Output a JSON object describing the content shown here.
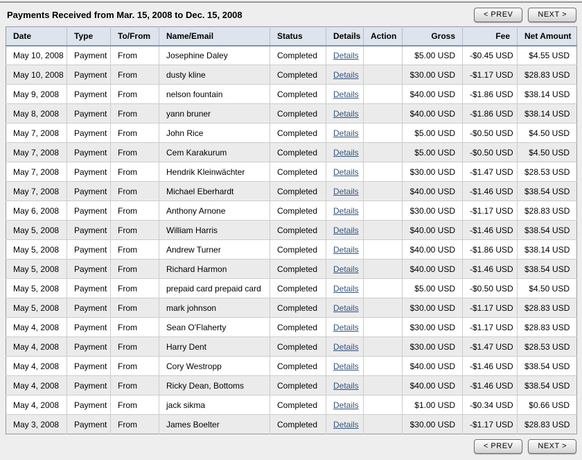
{
  "page": {
    "title": "Payments Received from Mar. 15, 2008 to Dec. 15, 2008",
    "prev_label": "< PREV",
    "next_label": "NEXT >"
  },
  "table": {
    "columns": [
      "Date",
      "Type",
      "To/From",
      "Name/Email",
      "Status",
      "Details",
      "Action",
      "Gross",
      "Fee",
      "Net Amount"
    ],
    "details_label": "Details",
    "rows": [
      {
        "date": "May 10, 2008",
        "type": "Payment",
        "to_from": "From",
        "name": "Josephine Daley",
        "status": "Completed",
        "gross": "$5.00 USD",
        "fee": "-$0.45 USD",
        "net": "$4.55 USD"
      },
      {
        "date": "May 10, 2008",
        "type": "Payment",
        "to_from": "From",
        "name": "dusty kline",
        "status": "Completed",
        "gross": "$30.00 USD",
        "fee": "-$1.17 USD",
        "net": "$28.83 USD"
      },
      {
        "date": "May 9, 2008",
        "type": "Payment",
        "to_from": "From",
        "name": "nelson fountain",
        "status": "Completed",
        "gross": "$40.00 USD",
        "fee": "-$1.86 USD",
        "net": "$38.14 USD"
      },
      {
        "date": "May 8, 2008",
        "type": "Payment",
        "to_from": "From",
        "name": "yann bruner",
        "status": "Completed",
        "gross": "$40.00 USD",
        "fee": "-$1.86 USD",
        "net": "$38.14 USD"
      },
      {
        "date": "May 7, 2008",
        "type": "Payment",
        "to_from": "From",
        "name": "John Rice",
        "status": "Completed",
        "gross": "$5.00 USD",
        "fee": "-$0.50 USD",
        "net": "$4.50 USD"
      },
      {
        "date": "May 7, 2008",
        "type": "Payment",
        "to_from": "From",
        "name": "Cem Karakurum",
        "status": "Completed",
        "gross": "$5.00 USD",
        "fee": "-$0.50 USD",
        "net": "$4.50 USD"
      },
      {
        "date": "May 7, 2008",
        "type": "Payment",
        "to_from": "From",
        "name": "Hendrik Kleinwächter",
        "status": "Completed",
        "gross": "$30.00 USD",
        "fee": "-$1.47 USD",
        "net": "$28.53 USD"
      },
      {
        "date": "May 7, 2008",
        "type": "Payment",
        "to_from": "From",
        "name": "Michael Eberhardt",
        "status": "Completed",
        "gross": "$40.00 USD",
        "fee": "-$1.46 USD",
        "net": "$38.54 USD"
      },
      {
        "date": "May 6, 2008",
        "type": "Payment",
        "to_from": "From",
        "name": "Anthony Arnone",
        "status": "Completed",
        "gross": "$30.00 USD",
        "fee": "-$1.17 USD",
        "net": "$28.83 USD"
      },
      {
        "date": "May 5, 2008",
        "type": "Payment",
        "to_from": "From",
        "name": "William Harris",
        "status": "Completed",
        "gross": "$40.00 USD",
        "fee": "-$1.46 USD",
        "net": "$38.54 USD"
      },
      {
        "date": "May 5, 2008",
        "type": "Payment",
        "to_from": "From",
        "name": "Andrew Turner",
        "status": "Completed",
        "gross": "$40.00 USD",
        "fee": "-$1.86 USD",
        "net": "$38.14 USD"
      },
      {
        "date": "May 5, 2008",
        "type": "Payment",
        "to_from": "From",
        "name": "Richard Harmon",
        "status": "Completed",
        "gross": "$40.00 USD",
        "fee": "-$1.46 USD",
        "net": "$38.54 USD"
      },
      {
        "date": "May 5, 2008",
        "type": "Payment",
        "to_from": "From",
        "name": "prepaid card prepaid card",
        "status": "Completed",
        "gross": "$5.00 USD",
        "fee": "-$0.50 USD",
        "net": "$4.50 USD"
      },
      {
        "date": "May 5, 2008",
        "type": "Payment",
        "to_from": "From",
        "name": "mark johnson",
        "status": "Completed",
        "gross": "$30.00 USD",
        "fee": "-$1.17 USD",
        "net": "$28.83 USD"
      },
      {
        "date": "May 4, 2008",
        "type": "Payment",
        "to_from": "From",
        "name": "Sean O'Flaherty",
        "status": "Completed",
        "gross": "$30.00 USD",
        "fee": "-$1.17 USD",
        "net": "$28.83 USD"
      },
      {
        "date": "May 4, 2008",
        "type": "Payment",
        "to_from": "From",
        "name": "Harry Dent",
        "status": "Completed",
        "gross": "$30.00 USD",
        "fee": "-$1.47 USD",
        "net": "$28.53 USD"
      },
      {
        "date": "May 4, 2008",
        "type": "Payment",
        "to_from": "From",
        "name": "Cory Westropp",
        "status": "Completed",
        "gross": "$40.00 USD",
        "fee": "-$1.46 USD",
        "net": "$38.54 USD"
      },
      {
        "date": "May 4, 2008",
        "type": "Payment",
        "to_from": "From",
        "name": "Ricky Dean, Bottoms",
        "status": "Completed",
        "gross": "$40.00 USD",
        "fee": "-$1.46 USD",
        "net": "$38.54 USD"
      },
      {
        "date": "May 4, 2008",
        "type": "Payment",
        "to_from": "From",
        "name": "jack sikma",
        "status": "Completed",
        "gross": "$1.00 USD",
        "fee": "-$0.34 USD",
        "net": "$0.66 USD"
      },
      {
        "date": "May 3, 2008",
        "type": "Payment",
        "to_from": "From",
        "name": "James Boelter",
        "status": "Completed",
        "gross": "$30.00 USD",
        "fee": "-$1.17 USD",
        "net": "$28.83 USD"
      }
    ]
  },
  "colors": {
    "page-bg": "#eeeeee",
    "header-bg": "#dde4ed",
    "header-rule": "#8094ae",
    "alt-row-bg": "#ebebeb",
    "cell-border": "#cccccc",
    "table-border": "#999999",
    "link": "#33547d"
  }
}
